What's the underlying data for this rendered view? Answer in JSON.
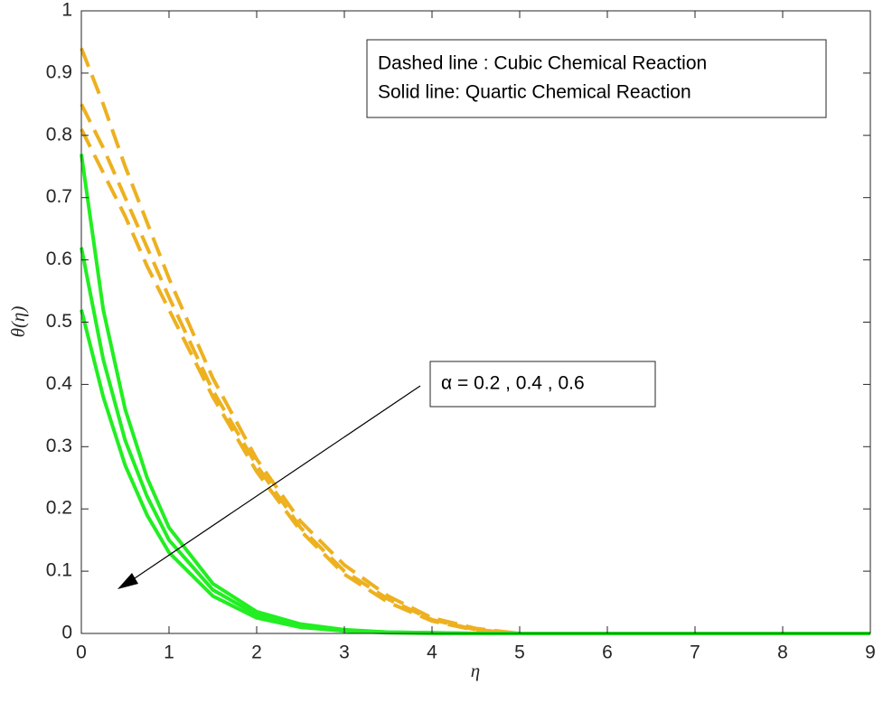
{
  "chart_data": {
    "type": "line",
    "xlabel": "η",
    "ylabel": "θ(η)",
    "annotations": [
      "Dashed line : Cubic Chemical Reaction",
      "Solid line: Quartic Chemical Reaction",
      "α = 0.2 , 0.4 , 0.6"
    ],
    "x": [
      0,
      0.25,
      0.5,
      0.75,
      1,
      1.5,
      2,
      2.5,
      3,
      3.5,
      4,
      4.5,
      5,
      6,
      7,
      8,
      9
    ],
    "series": [
      {
        "color": "#edb120",
        "dashed": true,
        "values": [
          0.94,
          0.85,
          0.75,
          0.66,
          0.57,
          0.41,
          0.28,
          0.18,
          0.11,
          0.06,
          0.025,
          0.008,
          0,
          0,
          0,
          0,
          0
        ]
      },
      {
        "color": "#edb120",
        "dashed": true,
        "values": [
          0.85,
          0.78,
          0.7,
          0.62,
          0.54,
          0.39,
          0.27,
          0.17,
          0.1,
          0.055,
          0.022,
          0.006,
          0,
          0,
          0,
          0,
          0
        ]
      },
      {
        "color": "#edb120",
        "dashed": true,
        "values": [
          0.81,
          0.74,
          0.67,
          0.59,
          0.52,
          0.38,
          0.26,
          0.165,
          0.095,
          0.05,
          0.02,
          0.005,
          0,
          0,
          0,
          0,
          0
        ]
      },
      {
        "color": "#22ee22",
        "dashed": false,
        "values": [
          0.77,
          0.52,
          0.36,
          0.25,
          0.17,
          0.08,
          0.035,
          0.015,
          0.006,
          0.002,
          0.001,
          0,
          0,
          0,
          0,
          0,
          0
        ]
      },
      {
        "color": "#22ee22",
        "dashed": false,
        "values": [
          0.62,
          0.44,
          0.31,
          0.22,
          0.15,
          0.07,
          0.03,
          0.012,
          0.005,
          0.002,
          0.001,
          0,
          0,
          0,
          0,
          0,
          0
        ]
      },
      {
        "color": "#22ee22",
        "dashed": false,
        "values": [
          0.52,
          0.38,
          0.27,
          0.19,
          0.13,
          0.06,
          0.025,
          0.01,
          0.004,
          0.001,
          0,
          0,
          0,
          0,
          0,
          0,
          0
        ]
      }
    ],
    "xlim": [
      0,
      9
    ],
    "xticks": [
      0,
      1,
      2,
      3,
      4,
      5,
      6,
      7,
      8,
      9
    ],
    "ylim": [
      0,
      1
    ],
    "yticks": [
      0,
      0.1,
      0.2,
      0.3,
      0.4,
      0.5,
      0.6,
      0.7,
      0.8,
      0.9,
      1
    ],
    "grid": false
  }
}
